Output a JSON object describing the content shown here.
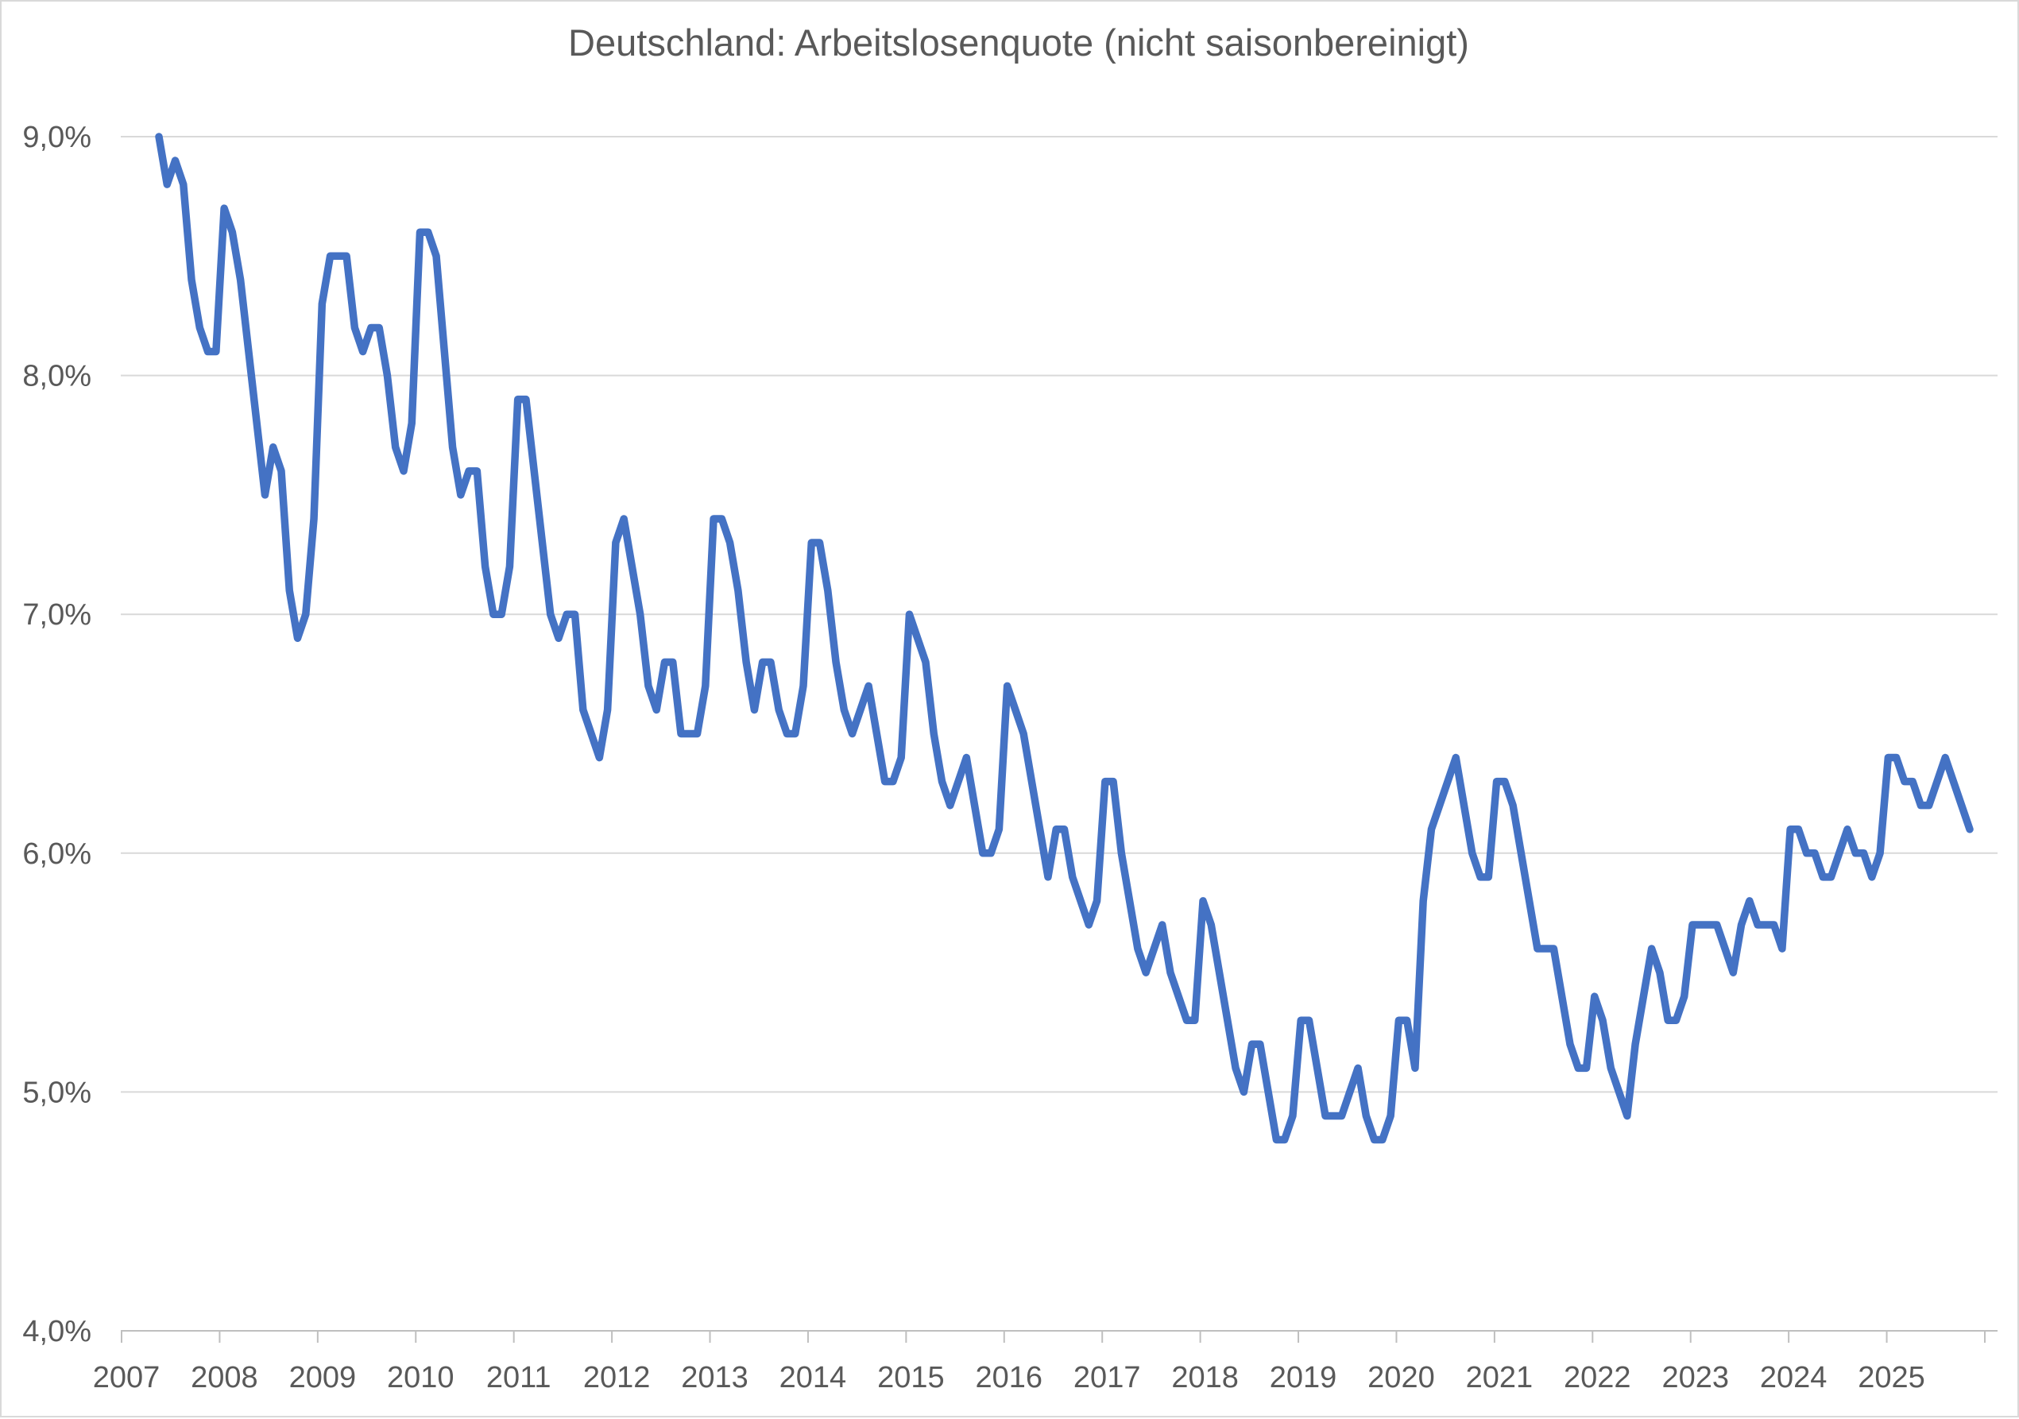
{
  "title": "Deutschland: Arbeitslosenquote (nicht saisonbereinigt)",
  "colors": {
    "line": "#4472C4",
    "gridline": "#D9D9D9",
    "axis_line": "#BFBFBF",
    "text": "#595959",
    "background": "#FFFFFF"
  },
  "y_axis": {
    "tick_labels": [
      "9,0%",
      "8,0%",
      "7,0%",
      "6,0%",
      "5,0%",
      "4,0%"
    ],
    "min": 4.0,
    "max": 9.0,
    "step": 1.0
  },
  "x_axis": {
    "tick_labels": [
      "2007",
      "2008",
      "2009",
      "2010",
      "2011",
      "2012",
      "2013",
      "2014",
      "2015",
      "2016",
      "2017",
      "2018",
      "2019",
      "2020",
      "2021",
      "2022",
      "2023",
      "2024",
      "2025"
    ]
  },
  "chart_data": {
    "type": "line",
    "title": "Deutschland: Arbeitslosenquote (nicht saisonbereinigt)",
    "xlabel": "",
    "ylabel": "",
    "unit": "percent",
    "frequency": "monthly",
    "start": {
      "year": 2007,
      "month": 5
    },
    "end": {
      "year": 2025,
      "month": 11
    },
    "ylim": [
      4.0,
      9.0
    ],
    "xticks_years": [
      2007,
      2025
    ],
    "grid": true,
    "legend": null,
    "series": [
      {
        "name": "Arbeitslosenquote (nicht saisonbereinigt)",
        "values_by_year": [
          {
            "year": 2007,
            "start_month": 5,
            "values": [
              9.0,
              8.8,
              8.9,
              8.8,
              8.4,
              8.2,
              8.1,
              8.1
            ]
          },
          {
            "year": 2008,
            "start_month": 1,
            "values": [
              8.7,
              8.6,
              8.4,
              8.1,
              7.8,
              7.5,
              7.7,
              7.6,
              7.1,
              6.9,
              7.0,
              7.4
            ]
          },
          {
            "year": 2009,
            "start_month": 1,
            "values": [
              8.3,
              8.5,
              8.5,
              8.5,
              8.2,
              8.1,
              8.2,
              8.2,
              8.0,
              7.7,
              7.6,
              7.8
            ]
          },
          {
            "year": 2010,
            "start_month": 1,
            "values": [
              8.6,
              8.6,
              8.5,
              8.1,
              7.7,
              7.5,
              7.6,
              7.6,
              7.2,
              7.0,
              7.0,
              7.2
            ]
          },
          {
            "year": 2011,
            "start_month": 1,
            "values": [
              7.9,
              7.9,
              7.6,
              7.3,
              7.0,
              6.9,
              7.0,
              7.0,
              6.6,
              6.5,
              6.4,
              6.6
            ]
          },
          {
            "year": 2012,
            "start_month": 1,
            "values": [
              7.3,
              7.4,
              7.2,
              7.0,
              6.7,
              6.6,
              6.8,
              6.8,
              6.5,
              6.5,
              6.5,
              6.7
            ]
          },
          {
            "year": 2013,
            "start_month": 1,
            "values": [
              7.4,
              7.4,
              7.3,
              7.1,
              6.8,
              6.6,
              6.8,
              6.8,
              6.6,
              6.5,
              6.5,
              6.7
            ]
          },
          {
            "year": 2014,
            "start_month": 1,
            "values": [
              7.3,
              7.3,
              7.1,
              6.8,
              6.6,
              6.5,
              6.6,
              6.7,
              6.5,
              6.3,
              6.3,
              6.4
            ]
          },
          {
            "year": 2015,
            "start_month": 1,
            "values": [
              7.0,
              6.9,
              6.8,
              6.5,
              6.3,
              6.2,
              6.3,
              6.4,
              6.2,
              6.0,
              6.0,
              6.1
            ]
          },
          {
            "year": 2016,
            "start_month": 1,
            "values": [
              6.7,
              6.6,
              6.5,
              6.3,
              6.1,
              5.9,
              6.1,
              6.1,
              5.9,
              5.8,
              5.7,
              5.8
            ]
          },
          {
            "year": 2017,
            "start_month": 1,
            "values": [
              6.3,
              6.3,
              6.0,
              5.8,
              5.6,
              5.5,
              5.6,
              5.7,
              5.5,
              5.4,
              5.3,
              5.3
            ]
          },
          {
            "year": 2018,
            "start_month": 1,
            "values": [
              5.8,
              5.7,
              5.5,
              5.3,
              5.1,
              5.0,
              5.2,
              5.2,
              5.0,
              4.8,
              4.8,
              4.9
            ]
          },
          {
            "year": 2019,
            "start_month": 1,
            "values": [
              5.3,
              5.3,
              5.1,
              4.9,
              4.9,
              4.9,
              5.0,
              5.1,
              4.9,
              4.8,
              4.8,
              4.9
            ]
          },
          {
            "year": 2020,
            "start_month": 1,
            "values": [
              5.3,
              5.3,
              5.1,
              5.8,
              6.1,
              6.2,
              6.3,
              6.4,
              6.2,
              6.0,
              5.9,
              5.9
            ]
          },
          {
            "year": 2021,
            "start_month": 1,
            "values": [
              6.3,
              6.3,
              6.2,
              6.0,
              5.8,
              5.6,
              5.6,
              5.6,
              5.4,
              5.2,
              5.1,
              5.1
            ]
          },
          {
            "year": 2022,
            "start_month": 1,
            "values": [
              5.4,
              5.3,
              5.1,
              5.0,
              4.9,
              5.2,
              5.4,
              5.6,
              5.5,
              5.3,
              5.3,
              5.4
            ]
          },
          {
            "year": 2023,
            "start_month": 1,
            "values": [
              5.7,
              5.7,
              5.7,
              5.7,
              5.6,
              5.5,
              5.7,
              5.8,
              5.7,
              5.7,
              5.7,
              5.6
            ]
          },
          {
            "year": 2024,
            "start_month": 1,
            "values": [
              6.1,
              6.1,
              6.0,
              6.0,
              5.9,
              5.9,
              6.0,
              6.1,
              6.0,
              6.0,
              5.9,
              6.0
            ]
          },
          {
            "year": 2025,
            "start_month": 1,
            "values": [
              6.4,
              6.4,
              6.3,
              6.3,
              6.2,
              6.2,
              6.3,
              6.4,
              6.3,
              6.2,
              6.1
            ]
          }
        ]
      }
    ]
  }
}
